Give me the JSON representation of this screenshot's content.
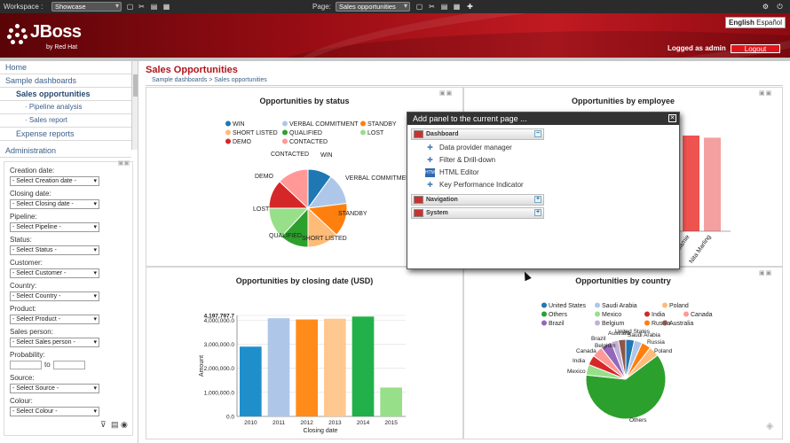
{
  "topbar": {
    "workspace_label": "Workspace :",
    "workspace_value": "Showcase",
    "page_label": "Page:",
    "page_value": "Sales opportunities"
  },
  "header": {
    "logo_name": "JBoss",
    "logo_sub": "by Red Hat",
    "lang_english": "English",
    "lang_spanish": "Español",
    "logged_as": "Logged as admin",
    "logout": "Logout"
  },
  "sidebar": {
    "items": [
      "Home",
      "Sample dashboards",
      "Sales opportunities",
      "Pipeline analysis",
      "Sales report",
      "Expense reports"
    ],
    "administration": "Administration",
    "filters": [
      {
        "label": "Creation date:",
        "value": "- Select Creation date -"
      },
      {
        "label": "Closing date:",
        "value": "- Select Closing date -"
      },
      {
        "label": "Pipeline:",
        "value": "- Select Pipeline -"
      },
      {
        "label": "Status:",
        "value": "- Select Status -"
      },
      {
        "label": "Customer:",
        "value": "- Select Customer -"
      },
      {
        "label": "Country:",
        "value": "- Select Country -"
      },
      {
        "label": "Product:",
        "value": "- Select Product -"
      },
      {
        "label": "Sales person:",
        "value": "- Select Sales person -"
      }
    ],
    "probability_label": "Probability:",
    "probability_to": "to",
    "filters2": [
      {
        "label": "Source:",
        "value": "- Select Source -"
      },
      {
        "label": "Colour:",
        "value": "- Select Colour -"
      }
    ]
  },
  "main": {
    "title": "Sales Opportunities",
    "breadcrumb": "Sample dashboards > Sales opportunities"
  },
  "panels": {
    "status_title": "Opportunities by status",
    "employee_title": "Opportunities by employee",
    "closing_title": "Opportunities by closing date (USD)",
    "country_title": "Opportunities by country"
  },
  "chart_data": [
    {
      "type": "pie",
      "title": "Opportunities by status",
      "legend": [
        "WIN",
        "VERBAL COMMITMENT",
        "STANDBY",
        "SHORT LISTED",
        "QUALIFIED",
        "LOST",
        "DEMO",
        "CONTACTED"
      ],
      "categories": [
        "WIN",
        "VERBAL COMMITMENT",
        "STANDBY",
        "SHORT LISTED",
        "QUALIFIED",
        "LOST",
        "DEMO",
        "CONTACTED"
      ],
      "values": [
        10,
        13,
        14,
        13,
        12,
        13,
        12,
        13
      ],
      "colors": [
        "#1f77b4",
        "#aec7e8",
        "#ff7f0e",
        "#ffbb78",
        "#2ca02c",
        "#98df8a",
        "#d62728",
        "#ff9896"
      ]
    },
    {
      "type": "bar",
      "title": "Opportunities by employee",
      "categories": [
        "Jamie",
        "Nita Marling"
      ],
      "values": [
        0.9,
        0.88
      ],
      "colors": [
        "#ef5350",
        "#f4a0a0"
      ],
      "ytick_labels": []
    },
    {
      "type": "bar",
      "title": "Opportunities by closing date (USD)",
      "ylabel": "Amount",
      "xlabel": "Closing date",
      "categories": [
        "2010",
        "2011",
        "2012",
        "2013",
        "2014",
        "2015"
      ],
      "values": [
        2900000,
        4080000,
        4030000,
        4060000,
        4150000,
        1200000
      ],
      "colors": [
        "#1f8fcc",
        "#aec7e8",
        "#ff8c1a",
        "#ffc890",
        "#22b04a",
        "#98df8a"
      ],
      "ylim": [
        0,
        4197797.7
      ],
      "yticks": [
        0,
        1000000,
        2000000,
        3000000,
        4000000,
        4197797.7
      ],
      "ytick_labels": [
        "0.0",
        "1,000,000.0",
        "2,000,000.0",
        "3,000,000.0",
        "4,000,000.0",
        "4,197,797.7"
      ]
    },
    {
      "type": "pie",
      "title": "Opportunities by country",
      "legend": [
        "United States",
        "Saudi Arabia",
        "Poland",
        "Others",
        "Mexico",
        "India",
        "Canada",
        "Brazil",
        "Belgium",
        "Russia",
        "Australia"
      ],
      "categories": [
        "United States",
        "Saudi Arabia",
        "Russia",
        "Poland",
        "Others",
        "Mexico",
        "India",
        "Canada",
        "Brazil",
        "Belgium",
        "Australia"
      ],
      "values": [
        3.5,
        3.2,
        3.8,
        4.2,
        62,
        4.3,
        4,
        4.5,
        4.5,
        3,
        3
      ],
      "colors": [
        "#1f77b4",
        "#aec7e8",
        "#ff7f0e",
        "#ffbb78",
        "#2ca02c",
        "#98df8a",
        "#d62728",
        "#ff9896",
        "#9467bd",
        "#c5b0d5",
        "#8c564b"
      ]
    }
  ],
  "modal": {
    "title": "Add panel to the current page ...",
    "groups": [
      "Dashboard",
      "Navigation",
      "System"
    ],
    "items": [
      "Data provider manager",
      "Filter & Drill-down",
      "HTML Editor",
      "Key Performance Indicator"
    ]
  }
}
